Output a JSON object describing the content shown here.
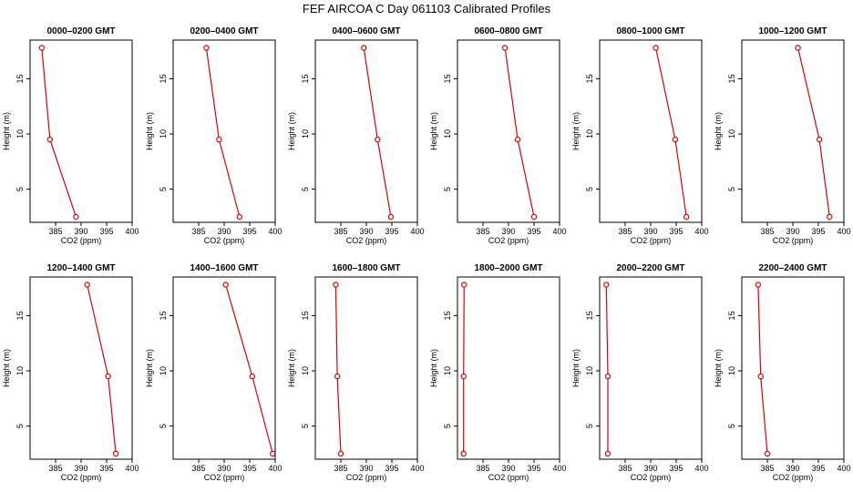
{
  "figure": {
    "title": "FEF  AIRCOA C  Day 061103  Calibrated Profiles"
  },
  "style": {
    "line_color": "#e00000",
    "marker_color": "#e00000",
    "axis_color": "#000000"
  },
  "chart_data": [
    {
      "type": "line",
      "title": "0000–0200 GMT",
      "xlabel": "CO2 (ppm)",
      "ylabel": "Height (m)",
      "xlim": [
        380,
        400
      ],
      "ylim": [
        2,
        18.5
      ],
      "xticks": [
        385,
        390,
        395,
        400
      ],
      "yticks": [
        5,
        10,
        15
      ],
      "grid": false,
      "series": [
        {
          "points": [
            {
              "x": 382.3,
              "y": 17.8
            },
            {
              "x": 383.9,
              "y": 9.5
            },
            {
              "x": 389.0,
              "y": 2.5
            }
          ]
        }
      ]
    },
    {
      "type": "line",
      "title": "0200–0400 GMT",
      "xlabel": "CO2 (ppm)",
      "ylabel": "Height (m)",
      "xlim": [
        380,
        400
      ],
      "ylim": [
        2,
        18.5
      ],
      "xticks": [
        385,
        390,
        395,
        400
      ],
      "yticks": [
        5,
        10,
        15
      ],
      "grid": false,
      "series": [
        {
          "points": [
            {
              "x": 386.5,
              "y": 17.8
            },
            {
              "x": 389.0,
              "y": 9.5
            },
            {
              "x": 393.0,
              "y": 2.5
            }
          ]
        }
      ]
    },
    {
      "type": "line",
      "title": "0400–0600 GMT",
      "xlabel": "CO2 (ppm)",
      "ylabel": "Height (m)",
      "xlim": [
        380,
        400
      ],
      "ylim": [
        2,
        18.5
      ],
      "xticks": [
        385,
        390,
        395,
        400
      ],
      "yticks": [
        5,
        10,
        15
      ],
      "grid": false,
      "series": [
        {
          "points": [
            {
              "x": 389.5,
              "y": 17.8
            },
            {
              "x": 392.2,
              "y": 9.5
            },
            {
              "x": 394.8,
              "y": 2.5
            }
          ]
        }
      ]
    },
    {
      "type": "line",
      "title": "0600–0800 GMT",
      "xlabel": "CO2 (ppm)",
      "ylabel": "Height (m)",
      "xlim": [
        380,
        400
      ],
      "ylim": [
        2,
        18.5
      ],
      "xticks": [
        385,
        390,
        395,
        400
      ],
      "yticks": [
        5,
        10,
        15
      ],
      "grid": false,
      "series": [
        {
          "points": [
            {
              "x": 389.3,
              "y": 17.8
            },
            {
              "x": 391.8,
              "y": 9.5
            },
            {
              "x": 395.0,
              "y": 2.5
            }
          ]
        }
      ]
    },
    {
      "type": "line",
      "title": "0800–1000 GMT",
      "xlabel": "CO2 (ppm)",
      "ylabel": "Height (m)",
      "xlim": [
        380,
        400
      ],
      "ylim": [
        2,
        18.5
      ],
      "xticks": [
        385,
        390,
        395,
        400
      ],
      "yticks": [
        5,
        10,
        15
      ],
      "grid": false,
      "series": [
        {
          "points": [
            {
              "x": 391.0,
              "y": 17.8
            },
            {
              "x": 394.8,
              "y": 9.5
            },
            {
              "x": 397.0,
              "y": 2.5
            }
          ]
        }
      ]
    },
    {
      "type": "line",
      "title": "1000–1200 GMT",
      "xlabel": "CO2 (ppm)",
      "ylabel": "Height (m)",
      "xlim": [
        380,
        400
      ],
      "ylim": [
        2,
        18.5
      ],
      "xticks": [
        385,
        390,
        395,
        400
      ],
      "yticks": [
        5,
        10,
        15
      ],
      "grid": false,
      "series": [
        {
          "points": [
            {
              "x": 391.0,
              "y": 17.8
            },
            {
              "x": 395.2,
              "y": 9.5
            },
            {
              "x": 397.2,
              "y": 2.5
            }
          ]
        }
      ]
    },
    {
      "type": "line",
      "title": "1200–1400 GMT",
      "xlabel": "CO2 (ppm)",
      "ylabel": "Height (m)",
      "xlim": [
        380,
        400
      ],
      "ylim": [
        2,
        18.5
      ],
      "xticks": [
        385,
        390,
        395,
        400
      ],
      "yticks": [
        5,
        10,
        15
      ],
      "grid": false,
      "series": [
        {
          "points": [
            {
              "x": 391.2,
              "y": 17.8
            },
            {
              "x": 395.3,
              "y": 9.5
            },
            {
              "x": 396.8,
              "y": 2.5
            }
          ]
        }
      ]
    },
    {
      "type": "line",
      "title": "1400–1600 GMT",
      "xlabel": "CO2 (ppm)",
      "ylabel": "Height (m)",
      "xlim": [
        380,
        400
      ],
      "ylim": [
        2,
        18.5
      ],
      "xticks": [
        385,
        390,
        395,
        400
      ],
      "yticks": [
        5,
        10,
        15
      ],
      "grid": false,
      "series": [
        {
          "points": [
            {
              "x": 390.3,
              "y": 17.8
            },
            {
              "x": 395.5,
              "y": 9.5
            },
            {
              "x": 399.5,
              "y": 2.5
            }
          ]
        }
      ]
    },
    {
      "type": "line",
      "title": "1600–1800 GMT",
      "xlabel": "CO2 (ppm)",
      "ylabel": "Height (m)",
      "xlim": [
        380,
        400
      ],
      "ylim": [
        2,
        18.5
      ],
      "xticks": [
        385,
        390,
        395,
        400
      ],
      "yticks": [
        5,
        10,
        15
      ],
      "grid": false,
      "series": [
        {
          "points": [
            {
              "x": 384.0,
              "y": 17.8
            },
            {
              "x": 384.3,
              "y": 9.5
            },
            {
              "x": 385.0,
              "y": 2.5
            }
          ]
        }
      ]
    },
    {
      "type": "line",
      "title": "1800–2000 GMT",
      "xlabel": "CO2 (ppm)",
      "ylabel": "Height (m)",
      "xlim": [
        380,
        400
      ],
      "ylim": [
        2,
        18.5
      ],
      "xticks": [
        385,
        390,
        395,
        400
      ],
      "yticks": [
        5,
        10,
        15
      ],
      "grid": false,
      "series": [
        {
          "points": [
            {
              "x": 381.3,
              "y": 17.8
            },
            {
              "x": 381.2,
              "y": 9.5
            },
            {
              "x": 381.2,
              "y": 2.5
            }
          ]
        }
      ]
    },
    {
      "type": "line",
      "title": "2000–2200 GMT",
      "xlabel": "CO2 (ppm)",
      "ylabel": "Height (m)",
      "xlim": [
        380,
        400
      ],
      "ylim": [
        2,
        18.5
      ],
      "xticks": [
        385,
        390,
        395,
        400
      ],
      "yticks": [
        5,
        10,
        15
      ],
      "grid": false,
      "series": [
        {
          "points": [
            {
              "x": 381.3,
              "y": 17.8
            },
            {
              "x": 381.6,
              "y": 9.5
            },
            {
              "x": 381.6,
              "y": 2.5
            }
          ]
        }
      ]
    },
    {
      "type": "line",
      "title": "2200–2400 GMT",
      "xlabel": "CO2 (ppm)",
      "ylabel": "Height (m)",
      "xlim": [
        380,
        400
      ],
      "ylim": [
        2,
        18.5
      ],
      "xticks": [
        385,
        390,
        395,
        400
      ],
      "yticks": [
        5,
        10,
        15
      ],
      "grid": false,
      "series": [
        {
          "points": [
            {
              "x": 383.2,
              "y": 17.8
            },
            {
              "x": 383.7,
              "y": 9.5
            },
            {
              "x": 385.0,
              "y": 2.5
            }
          ]
        }
      ]
    }
  ]
}
